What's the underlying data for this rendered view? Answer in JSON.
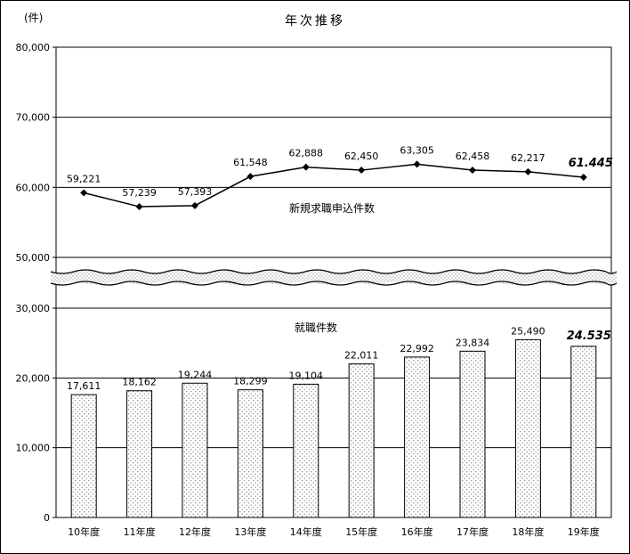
{
  "title": "年次推移",
  "unit_label": "(件)",
  "chart_data": {
    "type": "composite",
    "subtypes": [
      "line",
      "bar"
    ],
    "title": "年次推移",
    "y_unit": "件",
    "categories": [
      "10年度",
      "11年度",
      "12年度",
      "13年度",
      "14年度",
      "15年度",
      "16年度",
      "17年度",
      "18年度",
      "19年度"
    ],
    "series": [
      {
        "name": "新規求職申込件数",
        "type": "line",
        "values": [
          59221,
          57239,
          57393,
          61548,
          62888,
          62450,
          63305,
          62458,
          62217,
          61445
        ],
        "labels": [
          "59,221",
          "57,239",
          "57,393",
          "61,548",
          "62,888",
          "62,450",
          "63,305",
          "62,458",
          "62,217",
          "61.445"
        ]
      },
      {
        "name": "就職件数",
        "type": "bar",
        "values": [
          17611,
          18162,
          19244,
          18299,
          19104,
          22011,
          22992,
          23834,
          25490,
          24535
        ],
        "labels": [
          "17,611",
          "18,162",
          "19,244",
          "18,299",
          "19,104",
          "22,011",
          "22,992",
          "23,834",
          "25,490",
          "24.535"
        ]
      }
    ],
    "y_axis": {
      "broken_axis": true,
      "break_between": [
        30000,
        50000
      ],
      "ticks_upper": [
        {
          "value": 80000,
          "label": "80,000"
        },
        {
          "value": 70000,
          "label": "70,000"
        },
        {
          "value": 60000,
          "label": "60,000"
        },
        {
          "value": 50000,
          "label": "50,000"
        }
      ],
      "ticks_lower": [
        {
          "value": 30000,
          "label": "30,000"
        },
        {
          "value": 20000,
          "label": "20,000"
        },
        {
          "value": 10000,
          "label": "10,000"
        },
        {
          "value": 0,
          "label": "0"
        }
      ]
    },
    "grid": true,
    "legend_position": "inline-annotations",
    "emphasis_last_category": true
  },
  "colors": {
    "text": "#000000",
    "line": "#000000",
    "marker": "#000000",
    "bar_border": "#000000",
    "bar_dot": "#888888",
    "grid": "#000000",
    "background": "#ffffff"
  }
}
